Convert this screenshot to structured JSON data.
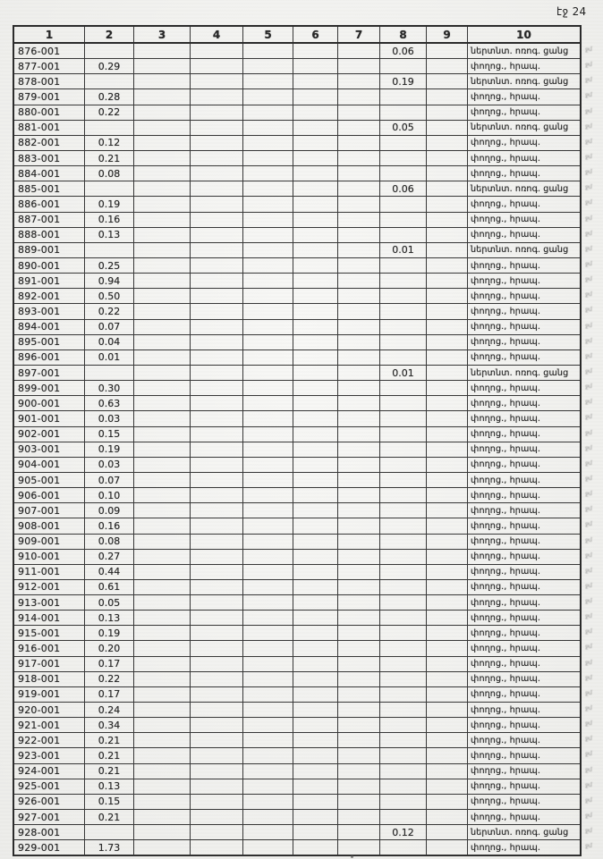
{
  "page": {
    "label": "էջ 24",
    "background": "#f4f4f1",
    "ink": "#2b2b2b"
  },
  "table": {
    "columns": [
      "1",
      "2",
      "3",
      "4",
      "5",
      "6",
      "7",
      "8",
      "9",
      "10"
    ],
    "margin_mark": "ջմ",
    "land_use_types": [
      "փողոց., հրապ.",
      "ներտնտ. ոռոգ. ցանց"
    ],
    "rows": [
      {
        "id": "876-001",
        "c2": "",
        "c8": "0.06",
        "c10": "ներտնտ. ոռոգ. ցանց"
      },
      {
        "id": "877-001",
        "c2": "0.29",
        "c8": "",
        "c10": "փողոց., հրապ."
      },
      {
        "id": "878-001",
        "c2": "",
        "c8": "0.19",
        "c10": "ներտնտ. ոռոգ. ցանց"
      },
      {
        "id": "879-001",
        "c2": "0.28",
        "c8": "",
        "c10": "փողոց., հրապ."
      },
      {
        "id": "880-001",
        "c2": "0.22",
        "c8": "",
        "c10": "փողոց., հրապ."
      },
      {
        "id": "881-001",
        "c2": "",
        "c8": "0.05",
        "c10": "ներտնտ. ոռոգ. ցանց"
      },
      {
        "id": "882-001",
        "c2": "0.12",
        "c8": "",
        "c10": "փողոց., հրապ."
      },
      {
        "id": "883-001",
        "c2": "0.21",
        "c8": "",
        "c10": "փողոց., հրապ."
      },
      {
        "id": "884-001",
        "c2": "0.08",
        "c8": "",
        "c10": "փողոց., հրապ."
      },
      {
        "id": "885-001",
        "c2": "",
        "c8": "0.06",
        "c10": "ներտնտ. ոռոգ. ցանց"
      },
      {
        "id": "886-001",
        "c2": "0.19",
        "c8": "",
        "c10": "փողոց., հրապ."
      },
      {
        "id": "887-001",
        "c2": "0.16",
        "c8": "",
        "c10": "փողոց., հրապ."
      },
      {
        "id": "888-001",
        "c2": "0.13",
        "c8": "",
        "c10": "փողոց., հրապ."
      },
      {
        "id": "889-001",
        "c2": "",
        "c8": "0.01",
        "c10": "ներտնտ. ոռոգ. ցանց"
      },
      {
        "id": "890-001",
        "c2": "0.25",
        "c8": "",
        "c10": "փողոց., հրապ."
      },
      {
        "id": "891-001",
        "c2": "0.94",
        "c8": "",
        "c10": "փողոց., հրապ."
      },
      {
        "id": "892-001",
        "c2": "0.50",
        "c8": "",
        "c10": "փողոց., հրապ."
      },
      {
        "id": "893-001",
        "c2": "0.22",
        "c8": "",
        "c10": "փողոց., հրապ."
      },
      {
        "id": "894-001",
        "c2": "0.07",
        "c8": "",
        "c10": "փողոց., հրապ."
      },
      {
        "id": "895-001",
        "c2": "0.04",
        "c8": "",
        "c10": "փողոց., հրապ."
      },
      {
        "id": "896-001",
        "c2": "0.01",
        "c8": "",
        "c10": "փողոց., հրապ."
      },
      {
        "id": "897-001",
        "c2": "",
        "c8": "0.01",
        "c10": "ներտնտ. ոռոգ. ցանց"
      },
      {
        "id": "899-001",
        "c2": "0.30",
        "c8": "",
        "c10": "փողոց., հրապ."
      },
      {
        "id": "900-001",
        "c2": "0.63",
        "c8": "",
        "c10": "փողոց., հրապ."
      },
      {
        "id": "901-001",
        "c2": "0.03",
        "c8": "",
        "c10": "փողոց., հրապ."
      },
      {
        "id": "902-001",
        "c2": "0.15",
        "c8": "",
        "c10": "փողոց., հրապ."
      },
      {
        "id": "903-001",
        "c2": "0.19",
        "c8": "",
        "c10": "փողոց., հրապ."
      },
      {
        "id": "904-001",
        "c2": "0.03",
        "c8": "",
        "c10": "փողոց., հրապ."
      },
      {
        "id": "905-001",
        "c2": "0.07",
        "c8": "",
        "c10": "փողոց., հրապ."
      },
      {
        "id": "906-001",
        "c2": "0.10",
        "c8": "",
        "c10": "փողոց., հրապ."
      },
      {
        "id": "907-001",
        "c2": "0.09",
        "c8": "",
        "c10": "փողոց., հրապ."
      },
      {
        "id": "908-001",
        "c2": "0.16",
        "c8": "",
        "c10": "փողոց., հրապ."
      },
      {
        "id": "909-001",
        "c2": "0.08",
        "c8": "",
        "c10": "փողոց., հրապ."
      },
      {
        "id": "910-001",
        "c2": "0.27",
        "c8": "",
        "c10": "փողոց., հրապ."
      },
      {
        "id": "911-001",
        "c2": "0.44",
        "c8": "",
        "c10": "փողոց., հրապ."
      },
      {
        "id": "912-001",
        "c2": "0.61",
        "c8": "",
        "c10": "փողոց., հրապ."
      },
      {
        "id": "913-001",
        "c2": "0.05",
        "c8": "",
        "c10": "փողոց., հրապ."
      },
      {
        "id": "914-001",
        "c2": "0.13",
        "c8": "",
        "c10": "փողոց., հրապ."
      },
      {
        "id": "915-001",
        "c2": "0.19",
        "c8": "",
        "c10": "փողոց., հրապ."
      },
      {
        "id": "916-001",
        "c2": "0.20",
        "c8": "",
        "c10": "փողոց., հրապ."
      },
      {
        "id": "917-001",
        "c2": "0.17",
        "c8": "",
        "c10": "փողոց., հրապ."
      },
      {
        "id": "918-001",
        "c2": "0.22",
        "c8": "",
        "c10": "փողոց., հրապ."
      },
      {
        "id": "919-001",
        "c2": "0.17",
        "c8": "",
        "c10": "փողոց., հրապ."
      },
      {
        "id": "920-001",
        "c2": "0.24",
        "c8": "",
        "c10": "փողոց., հրապ."
      },
      {
        "id": "921-001",
        "c2": "0.34",
        "c8": "",
        "c10": "փողոց., հրապ."
      },
      {
        "id": "922-001",
        "c2": "0.21",
        "c8": "",
        "c10": "փողոց., հրապ."
      },
      {
        "id": "923-001",
        "c2": "0.21",
        "c8": "",
        "c10": "փողոց., հրապ."
      },
      {
        "id": "924-001",
        "c2": "0.21",
        "c8": "",
        "c10": "փողոց., հրապ."
      },
      {
        "id": "925-001",
        "c2": "0.13",
        "c8": "",
        "c10": "փողոց., հրապ."
      },
      {
        "id": "926-001",
        "c2": "0.15",
        "c8": "",
        "c10": "փողոց., հրապ."
      },
      {
        "id": "927-001",
        "c2": "0.21",
        "c8": "",
        "c10": "փողոց., հրապ."
      },
      {
        "id": "928-001",
        "c2": "",
        "c8": "0.12",
        "c10": "ներտնտ. ոռոգ. ցանց"
      },
      {
        "id": "929-001",
        "c2": "1.73",
        "c8": "",
        "c10": "փողոց., հրապ."
      }
    ]
  }
}
